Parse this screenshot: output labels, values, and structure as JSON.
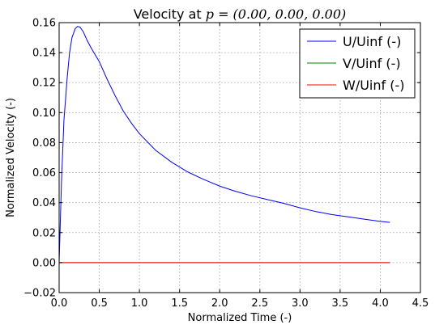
{
  "chart_data": {
    "type": "line",
    "title_prefix": "Velocity at ",
    "title_math": "p = (0.00, 0.00, 0.00)",
    "xlabel": "Normalized Time (-)",
    "ylabel": "Normalized Velocity (-)",
    "xlim": [
      0.0,
      4.5
    ],
    "ylim": [
      -0.02,
      0.16
    ],
    "xticks": [
      0.0,
      0.5,
      1.0,
      1.5,
      2.0,
      2.5,
      3.0,
      3.5,
      4.0,
      4.5
    ],
    "xtick_labels": [
      "0.0",
      "0.5",
      "1.0",
      "1.5",
      "2.0",
      "2.5",
      "3.0",
      "3.5",
      "4.0",
      "4.5"
    ],
    "yticks": [
      -0.02,
      0.0,
      0.02,
      0.04,
      0.06,
      0.08,
      0.1,
      0.12,
      0.14,
      0.16
    ],
    "ytick_labels": [
      "−0.02",
      "0.00",
      "0.02",
      "0.04",
      "0.06",
      "0.08",
      "0.10",
      "0.12",
      "0.14",
      "0.16"
    ],
    "grid": true,
    "legend_position": "top-right",
    "series": [
      {
        "name": "U/Uinf (-)",
        "color": "#0000ff",
        "x": [
          0.0,
          0.03,
          0.06,
          0.1,
          0.13,
          0.16,
          0.2,
          0.23,
          0.26,
          0.3,
          0.35,
          0.4,
          0.5,
          0.6,
          0.7,
          0.8,
          0.9,
          1.0,
          1.2,
          1.4,
          1.6,
          1.8,
          2.0,
          2.2,
          2.4,
          2.6,
          2.8,
          3.0,
          3.2,
          3.4,
          3.6,
          3.8,
          4.0,
          4.12
        ],
        "y": [
          0.0,
          0.055,
          0.095,
          0.123,
          0.14,
          0.15,
          0.156,
          0.1575,
          0.157,
          0.154,
          0.148,
          0.143,
          0.134,
          0.122,
          0.111,
          0.101,
          0.093,
          0.086,
          0.075,
          0.067,
          0.0605,
          0.0555,
          0.051,
          0.0475,
          0.0445,
          0.042,
          0.0395,
          0.0365,
          0.034,
          0.032,
          0.0305,
          0.029,
          0.0275,
          0.0268
        ]
      },
      {
        "name": "V/Uinf (-)",
        "color": "#008000",
        "x": [
          0.0,
          4.12
        ],
        "y": [
          0.0,
          0.0
        ]
      },
      {
        "name": "W/Uinf (-)",
        "color": "#ff0000",
        "x": [
          0.0,
          4.12
        ],
        "y": [
          0.0,
          0.0
        ]
      }
    ]
  }
}
